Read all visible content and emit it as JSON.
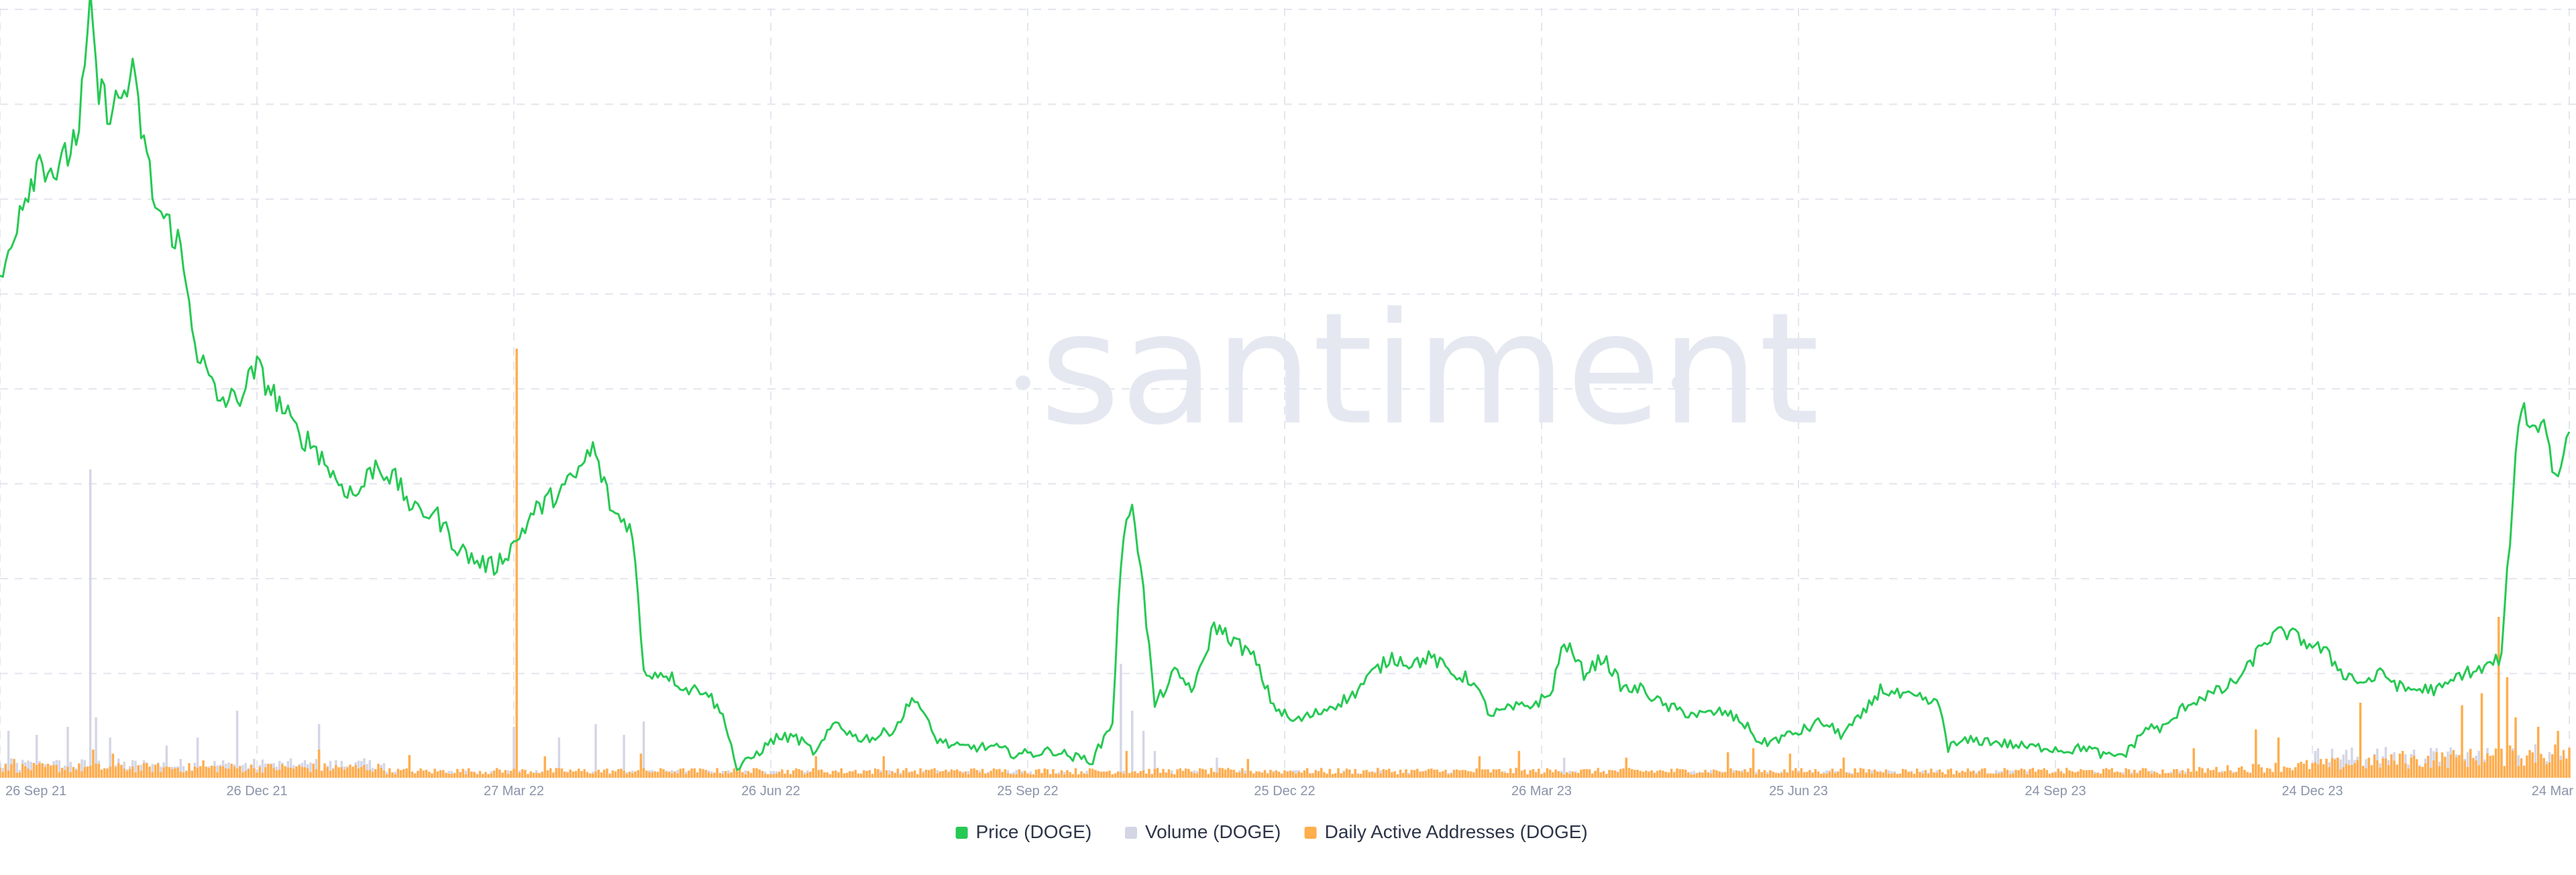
{
  "watermark": "santiment",
  "chart_data": {
    "type": "bar+line",
    "x_ticks": [
      "26 Sep 21",
      "26 Dec 21",
      "27 Mar 22",
      "26 Jun 22",
      "25 Sep 22",
      "25 Dec 22",
      "26 Mar 23",
      "25 Jun 23",
      "24 Sep 23",
      "24 Dec 23",
      "24 Mar"
    ],
    "grid": true,
    "legend_position": "bottom-center",
    "colors": {
      "price": "#26c953",
      "volume": "#d4d6e6",
      "daa": "#ffad4d",
      "grid": "#e4e6ee",
      "tick": "#8a93a8",
      "watermark": "#e6e8f1"
    },
    "series": [
      {
        "name": "Price (DOGE)",
        "key": "price",
        "type": "line",
        "points": [
          [
            "2021-09-26",
            0.205
          ],
          [
            "2021-10-03",
            0.23
          ],
          [
            "2021-10-10",
            0.245
          ],
          [
            "2021-10-17",
            0.24
          ],
          [
            "2021-10-24",
            0.255
          ],
          [
            "2021-10-28",
            0.29
          ],
          [
            "2021-10-31",
            0.265
          ],
          [
            "2021-11-05",
            0.26
          ],
          [
            "2021-11-12",
            0.27
          ],
          [
            "2021-11-20",
            0.23
          ],
          [
            "2021-11-28",
            0.22
          ],
          [
            "2021-12-05",
            0.185
          ],
          [
            "2021-12-12",
            0.17
          ],
          [
            "2021-12-19",
            0.17
          ],
          [
            "2021-12-26",
            0.18
          ],
          [
            "2022-01-02",
            0.17
          ],
          [
            "2022-01-09",
            0.16
          ],
          [
            "2022-01-16",
            0.155
          ],
          [
            "2022-01-23",
            0.145
          ],
          [
            "2022-01-30",
            0.14
          ],
          [
            "2022-02-06",
            0.15
          ],
          [
            "2022-02-13",
            0.145
          ],
          [
            "2022-02-20",
            0.135
          ],
          [
            "2022-02-27",
            0.135
          ],
          [
            "2022-03-06",
            0.125
          ],
          [
            "2022-03-13",
            0.12
          ],
          [
            "2022-03-20",
            0.118
          ],
          [
            "2022-03-27",
            0.125
          ],
          [
            "2022-04-03",
            0.135
          ],
          [
            "2022-04-10",
            0.14
          ],
          [
            "2022-04-17",
            0.145
          ],
          [
            "2022-04-24",
            0.155
          ],
          [
            "2022-05-01",
            0.135
          ],
          [
            "2022-05-08",
            0.13
          ],
          [
            "2022-05-12",
            0.085
          ],
          [
            "2022-05-20",
            0.085
          ],
          [
            "2022-05-27",
            0.08
          ],
          [
            "2022-06-03",
            0.08
          ],
          [
            "2022-06-10",
            0.07
          ],
          [
            "2022-06-14",
            0.055
          ],
          [
            "2022-06-21",
            0.06
          ],
          [
            "2022-06-28",
            0.065
          ],
          [
            "2022-07-05",
            0.065
          ],
          [
            "2022-07-12",
            0.06
          ],
          [
            "2022-07-19",
            0.07
          ],
          [
            "2022-07-26",
            0.065
          ],
          [
            "2022-08-02",
            0.065
          ],
          [
            "2022-08-09",
            0.068
          ],
          [
            "2022-08-16",
            0.078
          ],
          [
            "2022-08-23",
            0.065
          ],
          [
            "2022-08-30",
            0.062
          ],
          [
            "2022-09-06",
            0.062
          ],
          [
            "2022-09-13",
            0.062
          ],
          [
            "2022-09-20",
            0.06
          ],
          [
            "2022-09-27",
            0.06
          ],
          [
            "2022-10-04",
            0.061
          ],
          [
            "2022-10-11",
            0.059
          ],
          [
            "2022-10-18",
            0.058
          ],
          [
            "2022-10-25",
            0.07
          ],
          [
            "2022-10-28",
            0.12
          ],
          [
            "2022-11-01",
            0.14
          ],
          [
            "2022-11-05",
            0.11
          ],
          [
            "2022-11-09",
            0.075
          ],
          [
            "2022-11-16",
            0.085
          ],
          [
            "2022-11-23",
            0.08
          ],
          [
            "2022-11-30",
            0.1
          ],
          [
            "2022-12-07",
            0.095
          ],
          [
            "2022-12-14",
            0.09
          ],
          [
            "2022-12-21",
            0.075
          ],
          [
            "2022-12-28",
            0.07
          ],
          [
            "2023-01-04",
            0.072
          ],
          [
            "2023-01-11",
            0.075
          ],
          [
            "2023-01-18",
            0.078
          ],
          [
            "2023-01-25",
            0.085
          ],
          [
            "2023-02-01",
            0.09
          ],
          [
            "2023-02-08",
            0.088
          ],
          [
            "2023-02-15",
            0.09
          ],
          [
            "2023-02-22",
            0.085
          ],
          [
            "2023-03-01",
            0.083
          ],
          [
            "2023-03-08",
            0.072
          ],
          [
            "2023-03-15",
            0.074
          ],
          [
            "2023-03-22",
            0.075
          ],
          [
            "2023-03-29",
            0.078
          ],
          [
            "2023-04-03",
            0.095
          ],
          [
            "2023-04-10",
            0.085
          ],
          [
            "2023-04-17",
            0.09
          ],
          [
            "2023-04-24",
            0.08
          ],
          [
            "2023-05-01",
            0.08
          ],
          [
            "2023-05-08",
            0.075
          ],
          [
            "2023-05-15",
            0.073
          ],
          [
            "2023-05-22",
            0.072
          ],
          [
            "2023-05-29",
            0.073
          ],
          [
            "2023-06-05",
            0.07
          ],
          [
            "2023-06-12",
            0.063
          ],
          [
            "2023-06-19",
            0.065
          ],
          [
            "2023-06-26",
            0.067
          ],
          [
            "2023-07-03",
            0.07
          ],
          [
            "2023-07-10",
            0.066
          ],
          [
            "2023-07-17",
            0.071
          ],
          [
            "2023-07-24",
            0.08
          ],
          [
            "2023-07-31",
            0.078
          ],
          [
            "2023-08-07",
            0.077
          ],
          [
            "2023-08-14",
            0.075
          ],
          [
            "2023-08-17",
            0.062
          ],
          [
            "2023-08-24",
            0.064
          ],
          [
            "2023-08-31",
            0.064
          ],
          [
            "2023-09-07",
            0.063
          ],
          [
            "2023-09-14",
            0.062
          ],
          [
            "2023-09-21",
            0.062
          ],
          [
            "2023-09-28",
            0.061
          ],
          [
            "2023-10-05",
            0.062
          ],
          [
            "2023-10-12",
            0.059
          ],
          [
            "2023-10-19",
            0.06
          ],
          [
            "2023-10-26",
            0.068
          ],
          [
            "2023-11-02",
            0.068
          ],
          [
            "2023-11-09",
            0.075
          ],
          [
            "2023-11-16",
            0.078
          ],
          [
            "2023-11-23",
            0.08
          ],
          [
            "2023-11-30",
            0.085
          ],
          [
            "2023-12-07",
            0.095
          ],
          [
            "2023-12-14",
            0.098
          ],
          [
            "2023-12-21",
            0.095
          ],
          [
            "2023-12-28",
            0.092
          ],
          [
            "2024-01-04",
            0.085
          ],
          [
            "2024-01-11",
            0.082
          ],
          [
            "2024-01-18",
            0.085
          ],
          [
            "2024-01-25",
            0.08
          ],
          [
            "2024-02-01",
            0.08
          ],
          [
            "2024-02-08",
            0.08
          ],
          [
            "2024-02-15",
            0.085
          ],
          [
            "2024-02-22",
            0.086
          ],
          [
            "2024-02-29",
            0.09
          ],
          [
            "2024-03-04",
            0.14
          ],
          [
            "2024-03-07",
            0.17
          ],
          [
            "2024-03-11",
            0.16
          ],
          [
            "2024-03-15",
            0.165
          ],
          [
            "2024-03-19",
            0.145
          ],
          [
            "2024-03-21",
            0.15
          ],
          [
            "2024-03-24",
            0.16
          ]
        ]
      },
      {
        "name": "Volume (DOGE)",
        "key": "volume",
        "type": "bar",
        "baseline": 0.3,
        "spikes": [
          [
            "2021-09-29",
            3.5
          ],
          [
            "2021-10-09",
            3.2
          ],
          [
            "2021-10-20",
            3.8
          ],
          [
            "2021-10-28",
            23.0
          ],
          [
            "2021-10-30",
            4.5
          ],
          [
            "2021-11-04",
            3.0
          ],
          [
            "2021-11-24",
            2.4
          ],
          [
            "2021-12-05",
            3.0
          ],
          [
            "2021-12-19",
            5.0
          ],
          [
            "2022-01-17",
            4.0
          ],
          [
            "2022-03-27",
            3.8
          ],
          [
            "2022-04-12",
            3.0
          ],
          [
            "2022-04-25",
            4.0
          ],
          [
            "2022-05-05",
            3.2
          ],
          [
            "2022-05-12",
            4.2
          ],
          [
            "2022-10-28",
            8.5
          ],
          [
            "2022-11-01",
            5.0
          ],
          [
            "2022-11-05",
            3.5
          ],
          [
            "2022-11-09",
            2.0
          ],
          [
            "2022-12-01",
            1.5
          ],
          [
            "2023-04-03",
            1.5
          ],
          [
            "2024-03-05",
            4.0
          ],
          [
            "2024-03-12",
            2.5
          ],
          [
            "2024-03-20",
            3.0
          ]
        ]
      },
      {
        "name": "Daily Active Addresses (DOGE)",
        "key": "daa",
        "type": "bar",
        "baseline": 0.45,
        "spikes": [
          [
            "2021-10-01",
            1.4
          ],
          [
            "2021-10-29",
            2.1
          ],
          [
            "2021-11-05",
            1.8
          ],
          [
            "2021-12-07",
            1.3
          ],
          [
            "2022-01-17",
            2.1
          ],
          [
            "2022-02-18",
            1.7
          ],
          [
            "2022-03-28",
            32.0
          ],
          [
            "2022-04-07",
            1.6
          ],
          [
            "2022-05-11",
            1.8
          ],
          [
            "2022-07-12",
            1.6
          ],
          [
            "2022-08-05",
            1.6
          ],
          [
            "2022-10-30",
            2.0
          ],
          [
            "2022-12-12",
            1.4
          ],
          [
            "2023-03-04",
            1.6
          ],
          [
            "2023-03-18",
            2.0
          ],
          [
            "2023-04-25",
            1.5
          ],
          [
            "2023-05-31",
            1.9
          ],
          [
            "2023-06-09",
            2.2
          ],
          [
            "2023-06-22",
            1.8
          ],
          [
            "2023-07-11",
            1.5
          ],
          [
            "2023-11-12",
            2.2
          ],
          [
            "2023-12-04",
            3.6
          ],
          [
            "2023-12-12",
            3.0
          ],
          [
            "2024-01-10",
            5.6
          ],
          [
            "2024-01-25",
            2.0
          ],
          [
            "2024-02-15",
            5.4
          ],
          [
            "2024-02-22",
            6.3
          ],
          [
            "2024-02-28",
            12.0
          ],
          [
            "2024-03-02",
            7.5
          ],
          [
            "2024-03-05",
            4.5
          ],
          [
            "2024-03-13",
            3.8
          ],
          [
            "2024-03-20",
            3.5
          ]
        ]
      }
    ]
  },
  "legend": [
    {
      "label": "Price (DOGE)",
      "color": "#26c953"
    },
    {
      "label": "Volume (DOGE)",
      "color": "#d4d6e6"
    },
    {
      "label": "Daily Active Addresses (DOGE)",
      "color": "#ffad4d"
    }
  ]
}
